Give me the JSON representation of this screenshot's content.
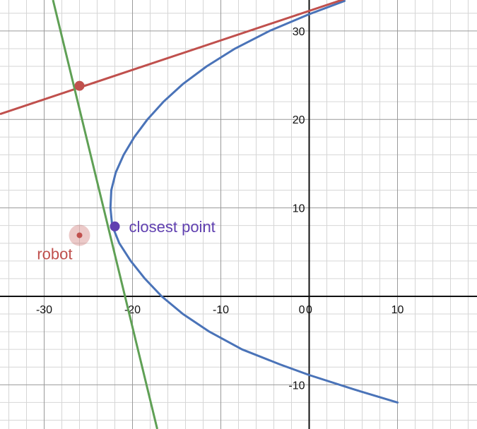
{
  "chart_data": {
    "type": "line",
    "xlim": [
      -35,
      19
    ],
    "ylim": [
      -15,
      33.5
    ],
    "grid": true,
    "minor_grid_step": 2,
    "major_grid_step": 10,
    "x_ticks": [
      -30,
      -20,
      -10,
      0,
      10
    ],
    "x_tick_labels": [
      "-30",
      "-20",
      "-10",
      "0",
      "10"
    ],
    "y_ticks": [
      -10,
      10,
      20,
      30
    ],
    "y_tick_labels": [
      "-10",
      "10",
      "20",
      "30"
    ],
    "series": [
      {
        "kind": "parametric",
        "color": "#4a73b8",
        "points": [
          [
            -22.5,
            10.0
          ],
          [
            -22.4,
            12.0
          ],
          [
            -21.9,
            14.0
          ],
          [
            -21.0,
            16.0
          ],
          [
            -19.8,
            18.0
          ],
          [
            -18.3,
            20.0
          ],
          [
            -16.5,
            22.0
          ],
          [
            -14.3,
            24.0
          ],
          [
            -11.6,
            26.0
          ],
          [
            -8.4,
            28.0
          ],
          [
            -4.5,
            30.0
          ],
          [
            0.0,
            31.9
          ],
          [
            4.0,
            33.4
          ]
        ],
        "lower_points": [
          [
            -22.5,
            10.0
          ],
          [
            -22.3,
            8.0
          ],
          [
            -21.5,
            6.0
          ],
          [
            -20.2,
            4.0
          ],
          [
            -18.6,
            2.0
          ],
          [
            -16.7,
            0.0
          ],
          [
            -14.3,
            -2.0
          ],
          [
            -11.3,
            -4.0
          ],
          [
            -7.6,
            -6.0
          ],
          [
            -3.3,
            -7.7
          ],
          [
            0.0,
            -8.9
          ],
          [
            5.0,
            -10.5
          ],
          [
            10.0,
            -12.0
          ]
        ]
      },
      {
        "kind": "line",
        "color": "#c0504d",
        "points": [
          [
            -35,
            20.6
          ],
          [
            4.0,
            33.6
          ]
        ]
      },
      {
        "kind": "line",
        "color": "#5fa055",
        "points": [
          [
            -29.0,
            33.5
          ],
          [
            -17.2,
            -15.0
          ]
        ]
      }
    ],
    "points": [
      {
        "x": -26.0,
        "y": 23.8,
        "color": "#c0504d"
      },
      {
        "x": -22.0,
        "y": 7.9,
        "color": "#6040b0",
        "label": "closest point"
      },
      {
        "x": -26.0,
        "y": 6.9,
        "color": "#c0504d",
        "label": "robot",
        "halo": true
      }
    ]
  }
}
